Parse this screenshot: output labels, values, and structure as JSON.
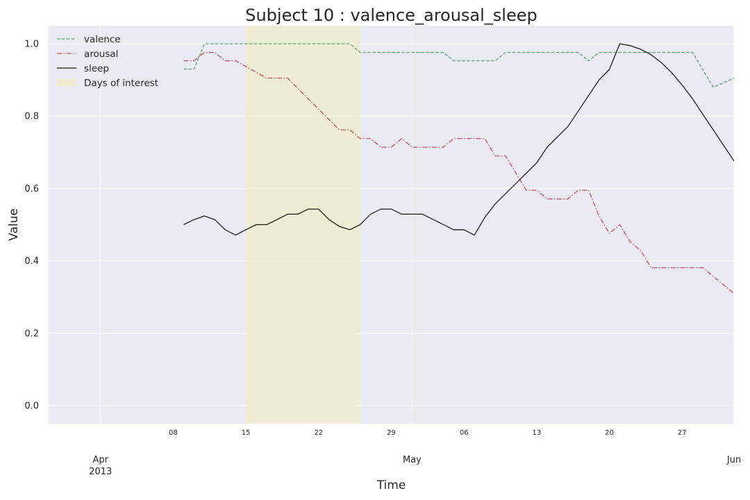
{
  "chart_data": {
    "type": "line",
    "title": "Subject 10 : valence_arousal_sleep",
    "xlabel": "Time",
    "ylabel": "Value",
    "ylim": [
      -0.05,
      1.05
    ],
    "xlim": [
      "2013-03-27",
      "2013-06-01"
    ],
    "yticks": [
      "0.0",
      "0.2",
      "0.4",
      "0.6",
      "0.8",
      "1.0"
    ],
    "x_major_ticks": [
      {
        "date": "2013-04-01",
        "label": "Apr",
        "sublabel": "2013"
      },
      {
        "date": "2013-05-01",
        "label": "May",
        "sublabel": ""
      },
      {
        "date": "2013-06-01",
        "label": "Jun",
        "sublabel": ""
      }
    ],
    "x_minor_ticks": [
      {
        "date": "2013-04-08",
        "label": "08"
      },
      {
        "date": "2013-04-15",
        "label": "15"
      },
      {
        "date": "2013-04-22",
        "label": "22"
      },
      {
        "date": "2013-04-29",
        "label": "29"
      },
      {
        "date": "2013-05-06",
        "label": "06"
      },
      {
        "date": "2013-05-13",
        "label": "13"
      },
      {
        "date": "2013-05-20",
        "label": "20"
      },
      {
        "date": "2013-05-27",
        "label": "27"
      }
    ],
    "grid": true,
    "legend_position": "top-left",
    "highlight": {
      "label": "Days of interest",
      "start": "2013-04-15",
      "end": "2013-04-26",
      "color": "#eeeccd"
    },
    "series": [
      {
        "name": "valence",
        "color": "#55a868",
        "dash": "dashed",
        "points": [
          [
            "2013-04-09",
            0.93
          ],
          [
            "2013-04-10",
            0.93
          ],
          [
            "2013-04-11",
            1.0
          ],
          [
            "2013-04-12",
            1.0
          ],
          [
            "2013-04-20",
            1.0
          ],
          [
            "2013-04-25",
            1.0
          ],
          [
            "2013-04-26",
            0.976
          ],
          [
            "2013-05-04",
            0.976
          ],
          [
            "2013-05-05",
            0.953
          ],
          [
            "2013-05-09",
            0.953
          ],
          [
            "2013-05-10",
            0.976
          ],
          [
            "2013-05-17",
            0.976
          ],
          [
            "2013-05-18",
            0.953
          ],
          [
            "2013-05-19",
            0.976
          ],
          [
            "2013-05-28",
            0.976
          ],
          [
            "2013-05-30",
            0.88
          ],
          [
            "2013-06-01",
            0.905
          ]
        ]
      },
      {
        "name": "arousal",
        "color": "#c44e52",
        "dash": "dashdot",
        "points": [
          [
            "2013-04-09",
            0.953
          ],
          [
            "2013-04-10",
            0.953
          ],
          [
            "2013-04-11",
            0.976
          ],
          [
            "2013-04-12",
            0.976
          ],
          [
            "2013-04-13",
            0.953
          ],
          [
            "2013-04-14",
            0.953
          ],
          [
            "2013-04-17",
            0.905
          ],
          [
            "2013-04-19",
            0.905
          ],
          [
            "2013-04-24",
            0.762
          ],
          [
            "2013-04-25",
            0.762
          ],
          [
            "2013-04-26",
            0.738
          ],
          [
            "2013-04-27",
            0.738
          ],
          [
            "2013-04-28",
            0.714
          ],
          [
            "2013-04-29",
            0.714
          ],
          [
            "2013-04-30",
            0.738
          ],
          [
            "2013-05-01",
            0.714
          ],
          [
            "2013-05-04",
            0.714
          ],
          [
            "2013-05-05",
            0.738
          ],
          [
            "2013-05-08",
            0.738
          ],
          [
            "2013-05-09",
            0.69
          ],
          [
            "2013-05-10",
            0.69
          ],
          [
            "2013-05-12",
            0.595
          ],
          [
            "2013-05-13",
            0.595
          ],
          [
            "2013-05-14",
            0.571
          ],
          [
            "2013-05-16",
            0.571
          ],
          [
            "2013-05-17",
            0.595
          ],
          [
            "2013-05-18",
            0.595
          ],
          [
            "2013-05-19",
            0.524
          ],
          [
            "2013-05-20",
            0.476
          ],
          [
            "2013-05-21",
            0.5
          ],
          [
            "2013-05-22",
            0.452
          ],
          [
            "2013-05-23",
            0.429
          ],
          [
            "2013-05-24",
            0.381
          ],
          [
            "2013-05-29",
            0.381
          ],
          [
            "2013-05-30",
            0.357
          ],
          [
            "2013-06-01",
            0.31
          ]
        ]
      },
      {
        "name": "sleep",
        "color": "#1a1a1a",
        "dash": "solid",
        "points": [
          [
            "2013-04-09",
            0.5
          ],
          [
            "2013-04-10",
            0.514
          ],
          [
            "2013-04-11",
            0.524
          ],
          [
            "2013-04-12",
            0.514
          ],
          [
            "2013-04-13",
            0.486
          ],
          [
            "2013-04-14",
            0.471
          ],
          [
            "2013-04-15",
            0.486
          ],
          [
            "2013-04-16",
            0.5
          ],
          [
            "2013-04-17",
            0.5
          ],
          [
            "2013-04-18",
            0.514
          ],
          [
            "2013-04-19",
            0.529
          ],
          [
            "2013-04-20",
            0.529
          ],
          [
            "2013-04-21",
            0.543
          ],
          [
            "2013-04-22",
            0.543
          ],
          [
            "2013-04-23",
            0.514
          ],
          [
            "2013-04-24",
            0.495
          ],
          [
            "2013-04-25",
            0.486
          ],
          [
            "2013-04-26",
            0.5
          ],
          [
            "2013-04-27",
            0.529
          ],
          [
            "2013-04-28",
            0.543
          ],
          [
            "2013-04-29",
            0.543
          ],
          [
            "2013-04-30",
            0.529
          ],
          [
            "2013-05-02",
            0.529
          ],
          [
            "2013-05-05",
            0.486
          ],
          [
            "2013-05-06",
            0.486
          ],
          [
            "2013-05-07",
            0.471
          ],
          [
            "2013-05-08",
            0.52
          ],
          [
            "2013-05-09",
            0.557
          ],
          [
            "2013-05-13",
            0.671
          ],
          [
            "2013-05-14",
            0.714
          ],
          [
            "2013-05-16",
            0.771
          ],
          [
            "2013-05-19",
            0.9
          ],
          [
            "2013-05-20",
            0.929
          ],
          [
            "2013-05-21",
            1.0
          ],
          [
            "2013-05-22",
            0.995
          ],
          [
            "2013-05-23",
            0.985
          ],
          [
            "2013-05-24",
            0.97
          ],
          [
            "2013-05-25",
            0.948
          ],
          [
            "2013-05-26",
            0.92
          ],
          [
            "2013-05-27",
            0.886
          ],
          [
            "2013-05-28",
            0.848
          ],
          [
            "2013-05-29",
            0.805
          ],
          [
            "2013-05-30",
            0.762
          ],
          [
            "2013-05-31",
            0.719
          ],
          [
            "2013-06-01",
            0.676
          ]
        ]
      }
    ]
  }
}
